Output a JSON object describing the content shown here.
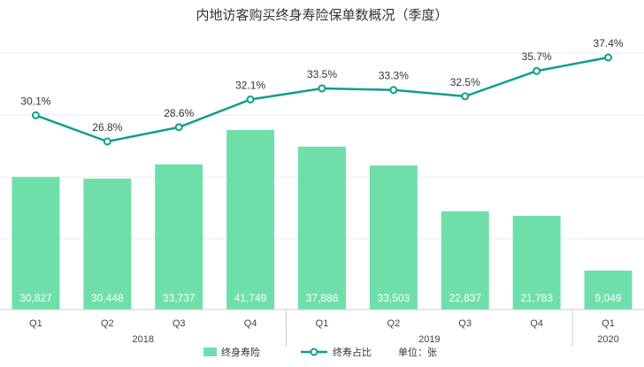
{
  "chart_data": {
    "type": "bar",
    "title": "内地访客购买终身寿险保单数概况（季度）",
    "categories": [
      "Q1",
      "Q2",
      "Q3",
      "Q4",
      "Q1",
      "Q2",
      "Q3",
      "Q4",
      "Q1"
    ],
    "groups": [
      {
        "label": "2018",
        "count": 4
      },
      {
        "label": "2019",
        "count": 4
      },
      {
        "label": "2020",
        "count": 1
      }
    ],
    "bar_value_labels": [
      "30,827",
      "30,448",
      "33,737",
      "41,749",
      "37,886",
      "33,503",
      "22,837",
      "21,783",
      "9,049"
    ],
    "line_value_labels": [
      "30.1%",
      "26.8%",
      "28.6%",
      "32.1%",
      "33.5%",
      "33.3%",
      "32.5%",
      "35.7%",
      "37.4%"
    ],
    "series": [
      {
        "name": "终身寿险",
        "type": "bar",
        "values": [
          30827,
          30448,
          33737,
          41749,
          37886,
          33503,
          22837,
          21783,
          9049
        ]
      },
      {
        "name": "终寿占比",
        "type": "line",
        "values": [
          30.1,
          26.8,
          28.6,
          32.1,
          33.5,
          33.3,
          32.5,
          35.7,
          37.4
        ]
      }
    ],
    "unit_note": "单位：张",
    "colors": {
      "bar": "#6fdfaa",
      "line": "#0e9e8c",
      "axis": "#cccccc",
      "grid": "#eeeeee"
    }
  }
}
